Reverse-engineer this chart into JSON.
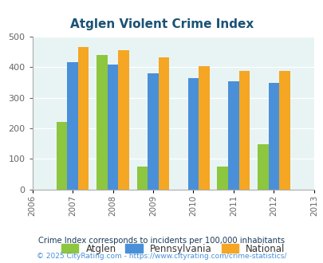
{
  "title": "Atglen Violent Crime Index",
  "years": [
    2006,
    2007,
    2008,
    2009,
    2010,
    2011,
    2012,
    2013
  ],
  "bar_years": [
    2007,
    2008,
    2009,
    2010,
    2011,
    2012
  ],
  "atglen": [
    220,
    440,
    75,
    0,
    75,
    147
  ],
  "pennsylvania": [
    418,
    408,
    380,
    365,
    353,
    349
  ],
  "national": [
    467,
    455,
    432,
    405,
    387,
    387
  ],
  "color_atglen": "#8dc63f",
  "color_pennsylvania": "#4a90d9",
  "color_national": "#f5a623",
  "bg_color": "#e8f4f4",
  "ylim": [
    0,
    500
  ],
  "yticks": [
    0,
    100,
    200,
    300,
    400,
    500
  ],
  "legend_labels": [
    "Atglen",
    "Pennsylvania",
    "National"
  ],
  "footnote1": "Crime Index corresponds to incidents per 100,000 inhabitants",
  "footnote2": "© 2025 CityRating.com - https://www.cityrating.com/crime-statistics/",
  "title_color": "#1a5276",
  "tick_color": "#666666",
  "footnote1_color": "#1a3a5c",
  "footnote2_color": "#4a90d9"
}
